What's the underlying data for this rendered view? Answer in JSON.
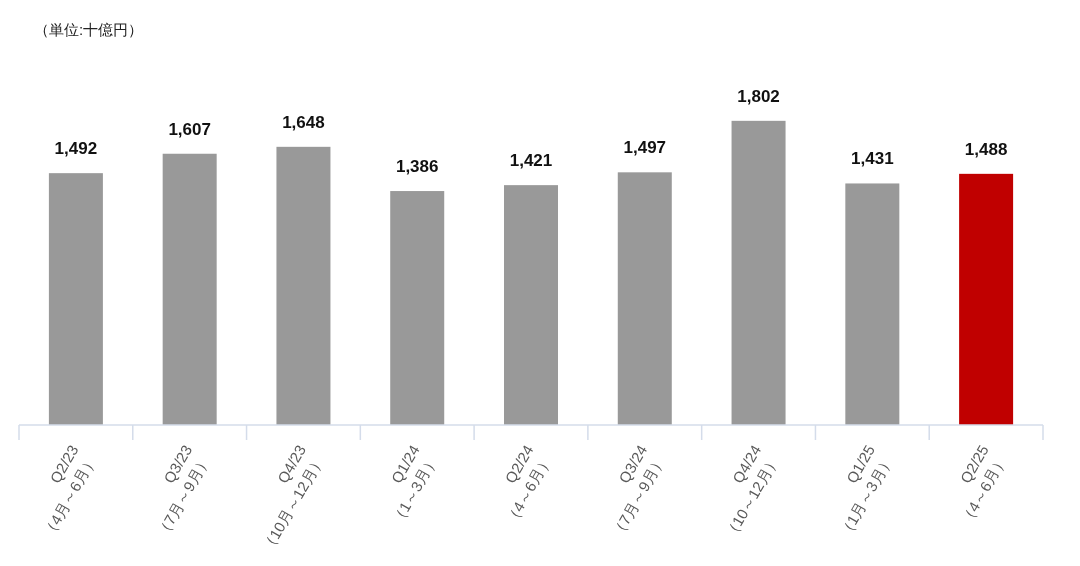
{
  "chart_data": {
    "type": "bar",
    "annotations": [
      "（単位:十億円）"
    ],
    "categories": [
      "Q2/23\n（4月～6月）",
      "Q3/23\n（7月～9月）",
      "Q4/23\n（10月～12月）",
      "Q1/24\n（1～3月）",
      "Q2/24\n（4～6月）",
      "Q3/24\n（7月～9月）",
      "Q4/24\n（10～12月）",
      "Q1/25\n（1月～3月）",
      "Q2/25\n（4～6月）"
    ],
    "values": [
      1492,
      1607,
      1648,
      1386,
      1421,
      1497,
      1802,
      1431,
      1488
    ],
    "colors": [
      "#999999",
      "#999999",
      "#999999",
      "#999999",
      "#999999",
      "#999999",
      "#999999",
      "#999999",
      "#c00000"
    ],
    "value_labels": [
      "1,492",
      "1,607",
      "1,648",
      "1,386",
      "1,421",
      "1,497",
      "1,802",
      "1,431",
      "1,488"
    ]
  }
}
